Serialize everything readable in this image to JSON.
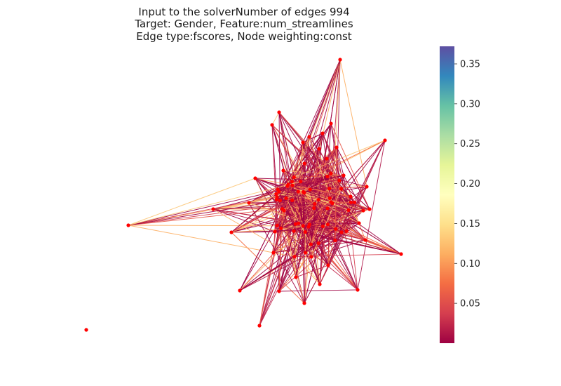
{
  "chart_data": {
    "type": "network",
    "title_lines": [
      "Input to the solverNumber of edges 994",
      "Target: Gender, Feature:num_streamlines",
      "Edge type:fscores, Node weighting:const"
    ],
    "edge_count": 994,
    "node_color": "#ff0000",
    "colorbar": {
      "colormap": "Spectral",
      "range": [
        0.0,
        0.372
      ],
      "ticks": [
        "0.05",
        "0.10",
        "0.15",
        "0.20",
        "0.25",
        "0.30",
        "0.35"
      ]
    },
    "edge_weight_note_hidden": false
  }
}
